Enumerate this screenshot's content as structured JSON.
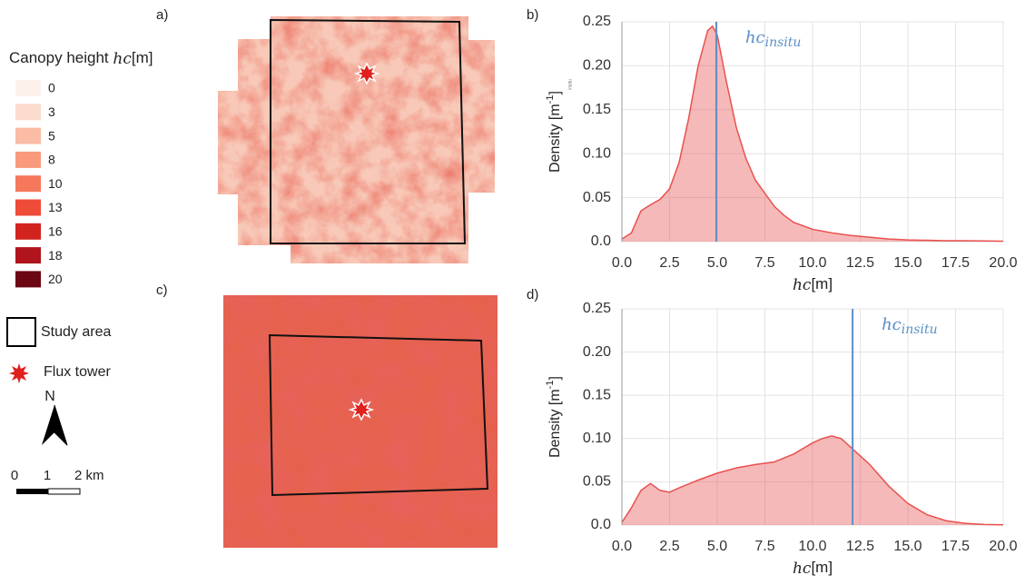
{
  "panel_labels": [
    "a)",
    "b)",
    "c)",
    "d)"
  ],
  "legend": {
    "title_parts": [
      "Canopy height ",
      "hc",
      "[m]"
    ],
    "color_scale": [
      {
        "value": 0,
        "color": "#fdf1ec"
      },
      {
        "value": 3,
        "color": "#fcdccf"
      },
      {
        "value": 5,
        "color": "#fbbca6"
      },
      {
        "value": 8,
        "color": "#f99a7d"
      },
      {
        "value": 10,
        "color": "#f6785c"
      },
      {
        "value": 13,
        "color": "#ee4b38"
      },
      {
        "value": 16,
        "color": "#d3231f"
      },
      {
        "value": 18,
        "color": "#b0141c"
      },
      {
        "value": 20,
        "color": "#6b0612"
      }
    ],
    "study_area": "Study area",
    "flux_tower": "Flux tower",
    "north": "N",
    "scale_bar": [
      "0",
      "1",
      "2 km"
    ]
  },
  "chart_data": [
    {
      "type": "area",
      "color": "#e8514f",
      "grid": true,
      "x": [
        0,
        0.5,
        1,
        1.5,
        2,
        2.5,
        3,
        3.5,
        4,
        4.5,
        4.75,
        5,
        5.5,
        6,
        6.5,
        7,
        7.5,
        8,
        8.5,
        9,
        9.5,
        10,
        11,
        12,
        13,
        14,
        15,
        16,
        17,
        18,
        20
      ],
      "values": [
        0.003,
        0.01,
        0.035,
        0.042,
        0.048,
        0.06,
        0.09,
        0.14,
        0.2,
        0.24,
        0.245,
        0.235,
        0.18,
        0.13,
        0.095,
        0.07,
        0.055,
        0.04,
        0.03,
        0.022,
        0.018,
        0.014,
        0.01,
        0.007,
        0.005,
        0.003,
        0.002,
        0.0015,
        0.001,
        0.001,
        0.0005
      ],
      "xlim": [
        0,
        20
      ],
      "ylim": [
        0,
        0.25
      ],
      "xticks": [
        {
          "value": 0,
          "label": "0.0"
        },
        2.5,
        {
          "value": 5,
          "label": "5.0"
        },
        7.5,
        {
          "value": 10,
          "label": "10.0"
        },
        12.5,
        {
          "value": 15,
          "label": "15.0"
        },
        17.5,
        {
          "value": 20,
          "label": "20.0"
        }
      ],
      "yticks": [
        {
          "value": 0,
          "label": "0.0"
        },
        0.05,
        {
          "value": 0.1,
          "label": "0.10"
        },
        0.15,
        {
          "value": 0.2,
          "label": "0.20"
        },
        0.25
      ],
      "xlabel_parts": [
        "hc",
        "[m]"
      ],
      "ylabel_parts": [
        "Density [m",
        "-1",
        "]"
      ],
      "ylabel_note": "insitu",
      "reference": {
        "value": 4.95,
        "label": "hc",
        "label_sub": "insitu",
        "color": "#5b8fc7"
      }
    },
    {
      "type": "area",
      "color": "#e8514f",
      "grid": true,
      "x": [
        0,
        0.5,
        1,
        1.5,
        2,
        2.5,
        3,
        4,
        5,
        6,
        7,
        8,
        9,
        10,
        10.5,
        11,
        11.5,
        12,
        13,
        14,
        15,
        16,
        17,
        18,
        19,
        20
      ],
      "values": [
        0.003,
        0.02,
        0.04,
        0.048,
        0.04,
        0.038,
        0.043,
        0.052,
        0.06,
        0.066,
        0.07,
        0.073,
        0.082,
        0.095,
        0.1,
        0.103,
        0.1,
        0.09,
        0.07,
        0.045,
        0.025,
        0.012,
        0.005,
        0.002,
        0.0007,
        0.0002
      ],
      "xlim": [
        0,
        20
      ],
      "ylim": [
        0,
        0.25
      ],
      "xticks": [
        {
          "value": 0,
          "label": "0.0"
        },
        2.5,
        {
          "value": 5,
          "label": "5.0"
        },
        7.5,
        {
          "value": 10,
          "label": "10.0"
        },
        12.5,
        {
          "value": 15,
          "label": "15.0"
        },
        17.5,
        {
          "value": 20,
          "label": "20.0"
        }
      ],
      "yticks": [
        {
          "value": 0,
          "label": "0.0"
        },
        0.05,
        {
          "value": 0.1,
          "label": "0.10"
        },
        0.15,
        {
          "value": 0.2,
          "label": "0.20"
        },
        0.25
      ],
      "xlabel_parts": [
        "hc",
        "[m]"
      ],
      "ylabel_parts": [
        "Density [m",
        "-1",
        "]"
      ],
      "reference": {
        "value": 12.1,
        "label": "hc",
        "label_sub": "insitu",
        "color": "#5b8fc7"
      }
    }
  ]
}
